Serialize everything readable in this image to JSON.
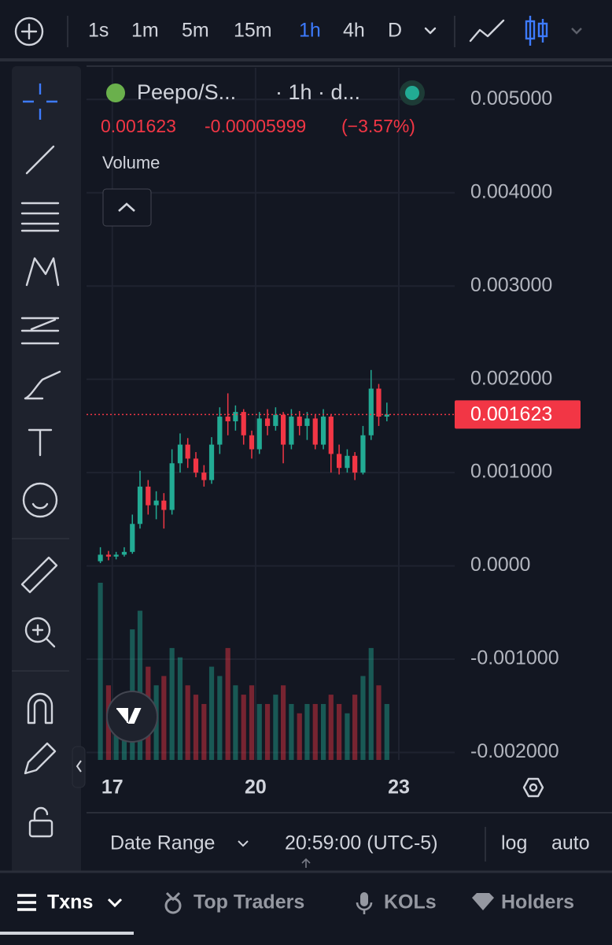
{
  "toolbar": {
    "intervals": [
      "1s",
      "1m",
      "5m",
      "15m",
      "1h",
      "4h",
      "D"
    ],
    "active": 4
  },
  "header": {
    "symbol": "Peepo/S...",
    "meta": "· 1h · d...",
    "change": "-0.00005999",
    "change_pct": "(−3.57%)",
    "volume_label": "Volume"
  },
  "chart_data": {
    "type": "candlestick",
    "up_color": "#22ab94",
    "down_color": "#f23645",
    "grid": true,
    "last_price": {
      "value": 0.001623,
      "label": "0.001623"
    },
    "xlim": [
      16.46,
      24.17
    ],
    "xticks": [
      17,
      20,
      23
    ],
    "ylim": [
      -0.00208,
      0.00534
    ],
    "yticks": [
      {
        "value": 0.005,
        "label": "0.005000"
      },
      {
        "value": 0.004,
        "label": "0.004000"
      },
      {
        "value": 0.003,
        "label": "0.003000"
      },
      {
        "value": 0.002,
        "label": "0.002000"
      },
      {
        "value": 0.001,
        "label": "0.001000"
      },
      {
        "value": 0,
        "label": "0.0000"
      },
      {
        "value": -0.001,
        "label": "-0.001000"
      },
      {
        "value": -0.002,
        "label": "-0.002000"
      }
    ],
    "x": [
      16.75,
      16.92,
      17.08,
      17.25,
      17.42,
      17.58,
      17.75,
      17.92,
      18.08,
      18.25,
      18.42,
      18.58,
      18.75,
      18.92,
      19.08,
      19.25,
      19.42,
      19.58,
      19.75,
      19.92,
      20.08,
      20.25,
      20.42,
      20.58,
      20.75,
      20.92,
      21.08,
      21.25,
      21.42,
      21.58,
      21.75,
      21.92,
      22.08,
      22.25,
      22.42,
      22.58,
      22.75
    ],
    "open": [
      5e-05,
      0.00012,
      0.0001,
      0.00012,
      0.00015,
      0.00045,
      0.00085,
      0.00065,
      0.0007,
      0.0006,
      0.0011,
      0.0013,
      0.00115,
      0.001,
      0.00092,
      0.0013,
      0.0016,
      0.00155,
      0.00165,
      0.0014,
      0.00125,
      0.00158,
      0.0015,
      0.00162,
      0.0013,
      0.0016,
      0.0015,
      0.00158,
      0.0013,
      0.0016,
      0.0012,
      0.00105,
      0.00118,
      0.001,
      0.0014,
      0.0019,
      0.0016
    ],
    "high": [
      0.0002,
      0.00016,
      0.00015,
      0.0002,
      0.00055,
      0.00102,
      0.00092,
      0.0008,
      0.00078,
      0.00125,
      0.00142,
      0.00137,
      0.00122,
      0.00108,
      0.00138,
      0.0017,
      0.00185,
      0.00172,
      0.00168,
      0.00145,
      0.00165,
      0.00168,
      0.0017,
      0.00165,
      0.00168,
      0.00166,
      0.00165,
      0.00162,
      0.00168,
      0.00162,
      0.0013,
      0.00125,
      0.00122,
      0.0015,
      0.0021,
      0.00195,
      0.00175
    ],
    "low": [
      3e-05,
      6e-05,
      7e-05,
      0.0001,
      0.00013,
      0.0004,
      0.00055,
      0.0005,
      0.0004,
      0.00055,
      0.001,
      0.00105,
      0.00095,
      0.00085,
      0.00088,
      0.0012,
      0.0014,
      0.00145,
      0.0013,
      0.00115,
      0.0012,
      0.0014,
      0.00145,
      0.0011,
      0.00125,
      0.0014,
      0.00135,
      0.00125,
      0.00125,
      0.001,
      0.00098,
      0.001,
      0.00092,
      0.00098,
      0.00135,
      0.0015,
      0.00155
    ],
    "close": [
      0.00012,
      0.0001,
      0.00012,
      0.00015,
      0.00045,
      0.00085,
      0.00065,
      0.0007,
      0.0006,
      0.0011,
      0.0013,
      0.00115,
      0.001,
      0.00092,
      0.0013,
      0.0016,
      0.00155,
      0.00165,
      0.0014,
      0.00125,
      0.00158,
      0.0015,
      0.00162,
      0.0013,
      0.0016,
      0.0015,
      0.00158,
      0.0013,
      0.0016,
      0.0012,
      0.00105,
      0.00118,
      0.001,
      0.0014,
      0.0019,
      0.0016,
      0.001623
    ],
    "volume": [
      95,
      40,
      30,
      35,
      70,
      80,
      50,
      40,
      45,
      60,
      55,
      40,
      35,
      30,
      50,
      45,
      60,
      40,
      35,
      40,
      30,
      30,
      35,
      40,
      30,
      25,
      30,
      30,
      30,
      35,
      30,
      25,
      35,
      45,
      60,
      40,
      30
    ]
  },
  "footer": {
    "date_range": "Date Range",
    "time": "20:59:00 (UTC-5)",
    "log": "log",
    "auto": "auto"
  },
  "tabs": [
    "Txns",
    "Top Traders",
    "KOLs",
    "Holders"
  ]
}
